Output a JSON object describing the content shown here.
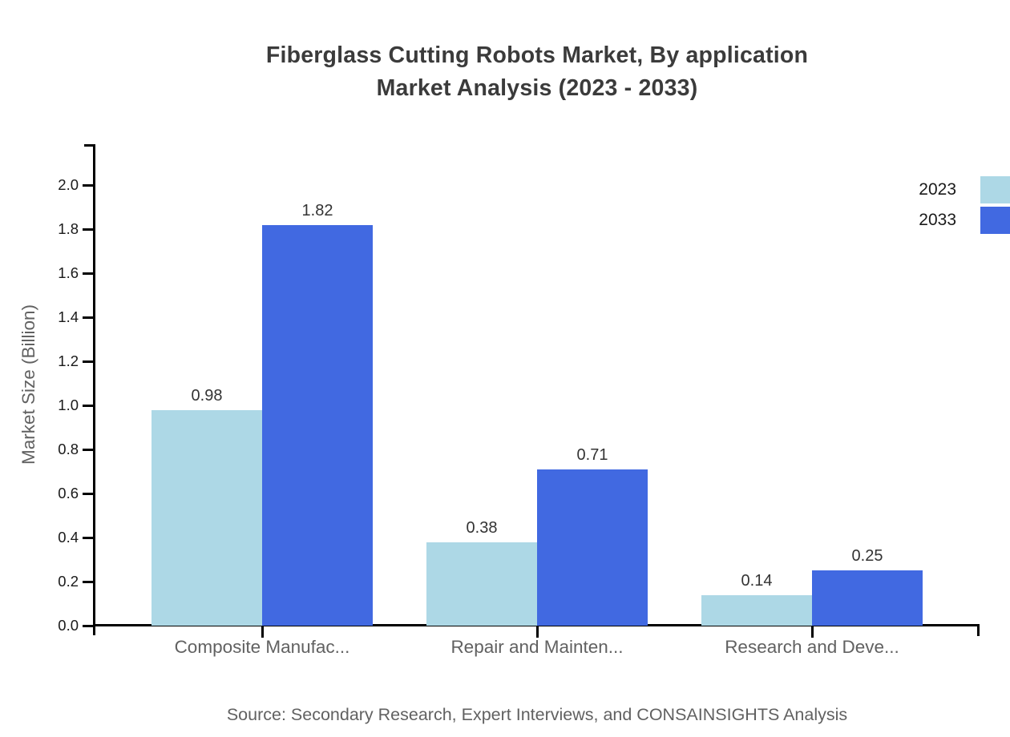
{
  "title": {
    "line1": "Fiberglass Cutting Robots Market, By application",
    "line2": "Market Analysis (2023 - 2033)"
  },
  "chart_data": {
    "type": "bar",
    "categories": [
      "Composite Manufac...",
      "Repair and Mainten...",
      "Research and Deve..."
    ],
    "series": [
      {
        "name": "2023",
        "color": "#add8e6",
        "values": [
          0.98,
          0.38,
          0.14
        ]
      },
      {
        "name": "2033",
        "color": "#4169e1",
        "values": [
          1.82,
          0.71,
          0.25
        ]
      }
    ],
    "ylabel": "Market Size (Billion)",
    "xlabel": "",
    "ylim": [
      0,
      2.0
    ],
    "ytick_step": 0.2,
    "grid": false,
    "legend_position": "top-right",
    "bar_value_labels": true
  },
  "source": "Source: Secondary Research, Expert Interviews, and CONSAINSIGHTS Analysis",
  "colors": {
    "series_2023": "#add8e6",
    "series_2033": "#4169e1",
    "axis": "#000000",
    "title_text": "#3b3b3b",
    "tick_label": "#1a1a1a",
    "category_label": "#616161",
    "value_label": "#333333",
    "source_text": "#616161",
    "background": "#ffffff"
  }
}
